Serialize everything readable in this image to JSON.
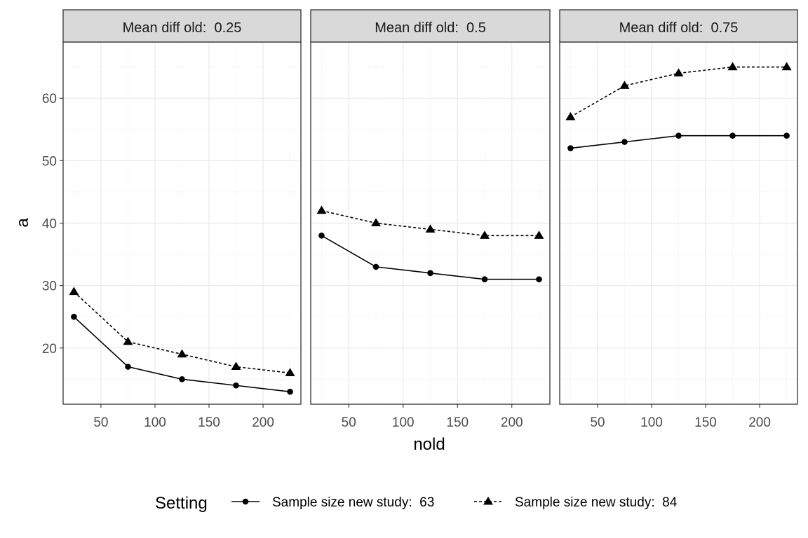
{
  "chart_data": {
    "type": "line",
    "xlabel": "nold",
    "ylabel": "a",
    "x": [
      25,
      75,
      125,
      175,
      225
    ],
    "xlim": [
      15,
      235
    ],
    "ylim": [
      11,
      69
    ],
    "x_ticks": [
      50,
      100,
      150,
      200
    ],
    "y_ticks": [
      20,
      30,
      40,
      50,
      60
    ],
    "grid": true,
    "legend_position": "bottom",
    "legend_title": "Setting",
    "panels": [
      {
        "strip_label": "Mean diff old:  0.25",
        "series": [
          {
            "name": "Sample size new study:  63",
            "values": [
              25,
              17,
              15,
              14,
              13
            ]
          },
          {
            "name": "Sample size new study:  84",
            "values": [
              29,
              21,
              19,
              17,
              16
            ]
          }
        ]
      },
      {
        "strip_label": "Mean diff old:  0.5",
        "series": [
          {
            "name": "Sample size new study:  63",
            "values": [
              38,
              33,
              32,
              31,
              31
            ]
          },
          {
            "name": "Sample size new study:  84",
            "values": [
              42,
              40,
              39,
              38,
              38
            ]
          }
        ]
      },
      {
        "strip_label": "Mean diff old:  0.75",
        "series": [
          {
            "name": "Sample size new study:  63",
            "values": [
              52,
              53,
              54,
              54,
              54
            ]
          },
          {
            "name": "Sample size new study:  84",
            "values": [
              57,
              62,
              64,
              65,
              65
            ]
          }
        ]
      }
    ],
    "series_styles": [
      {
        "linetype": "solid",
        "shape": "circle"
      },
      {
        "linetype": "dotted",
        "shape": "triangle"
      }
    ]
  }
}
